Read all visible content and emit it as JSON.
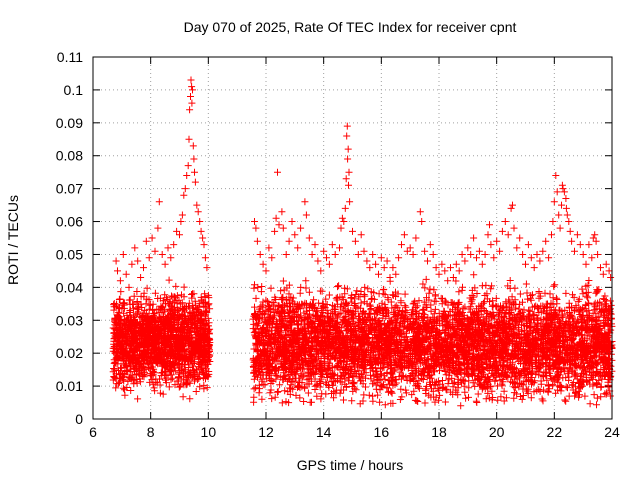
{
  "chart_data": {
    "type": "scatter",
    "title": "Day 070 of 2025, Rate Of TEC Index for receiver cpnt",
    "xlabel": "GPS time / hours",
    "ylabel": "ROTI / TECUs",
    "xlim": [
      6,
      24
    ],
    "ylim": [
      0,
      0.11
    ],
    "x_ticks": [
      "6",
      "8",
      "10",
      "12",
      "14",
      "16",
      "18",
      "20",
      "22",
      "24"
    ],
    "y_ticks": [
      "0",
      "0.01",
      "0.02",
      "0.03",
      "0.04",
      "0.05",
      "0.06",
      "0.07",
      "0.08",
      "0.09",
      "0.1",
      "0.11"
    ],
    "grid": true,
    "marker": "+",
    "color": "#ff0000",
    "series": [
      {
        "name": "ROTI",
        "points": [
          [
            6.8,
            0.048
          ],
          [
            6.85,
            0.045
          ],
          [
            6.95,
            0.042
          ],
          [
            7.05,
            0.05
          ],
          [
            7.15,
            0.044
          ],
          [
            7.25,
            0.04
          ],
          [
            7.35,
            0.047
          ],
          [
            7.45,
            0.052
          ],
          [
            7.55,
            0.048
          ],
          [
            7.65,
            0.043
          ],
          [
            7.75,
            0.046
          ],
          [
            7.85,
            0.054
          ],
          [
            7.95,
            0.049
          ],
          [
            8.05,
            0.055
          ],
          [
            8.15,
            0.051
          ],
          [
            8.25,
            0.058
          ],
          [
            8.3,
            0.066
          ],
          [
            8.4,
            0.05
          ],
          [
            8.5,
            0.047
          ],
          [
            8.6,
            0.052
          ],
          [
            8.7,
            0.049
          ],
          [
            8.8,
            0.053
          ],
          [
            8.9,
            0.057
          ],
          [
            9.0,
            0.056
          ],
          [
            9.05,
            0.06
          ],
          [
            9.1,
            0.062
          ],
          [
            9.15,
            0.068
          ],
          [
            9.2,
            0.07
          ],
          [
            9.25,
            0.074
          ],
          [
            9.3,
            0.077
          ],
          [
            9.33,
            0.085
          ],
          [
            9.35,
            0.094
          ],
          [
            9.38,
            0.098
          ],
          [
            9.4,
            0.103
          ],
          [
            9.42,
            0.101
          ],
          [
            9.45,
            0.1
          ],
          [
            9.43,
            0.096
          ],
          [
            9.48,
            0.083
          ],
          [
            9.5,
            0.079
          ],
          [
            9.52,
            0.075
          ],
          [
            9.55,
            0.072
          ],
          [
            9.6,
            0.065
          ],
          [
            9.65,
            0.063
          ],
          [
            9.7,
            0.06
          ],
          [
            9.75,
            0.057
          ],
          [
            9.8,
            0.055
          ],
          [
            9.85,
            0.053
          ],
          [
            9.9,
            0.049
          ],
          [
            9.95,
            0.046
          ],
          [
            11.6,
            0.06
          ],
          [
            11.65,
            0.058
          ],
          [
            11.7,
            0.054
          ],
          [
            11.8,
            0.05
          ],
          [
            11.9,
            0.047
          ],
          [
            12.0,
            0.045
          ],
          [
            12.1,
            0.052
          ],
          [
            12.2,
            0.049
          ],
          [
            12.3,
            0.057
          ],
          [
            12.35,
            0.061
          ],
          [
            12.4,
            0.075
          ],
          [
            12.45,
            0.059
          ],
          [
            12.55,
            0.063
          ],
          [
            12.6,
            0.058
          ],
          [
            12.7,
            0.05
          ],
          [
            12.8,
            0.054
          ],
          [
            12.9,
            0.06
          ],
          [
            13.0,
            0.056
          ],
          [
            13.1,
            0.052
          ],
          [
            13.2,
            0.058
          ],
          [
            13.35,
            0.066
          ],
          [
            13.4,
            0.062
          ],
          [
            13.5,
            0.055
          ],
          [
            13.6,
            0.05
          ],
          [
            13.7,
            0.053
          ],
          [
            13.8,
            0.048
          ],
          [
            13.9,
            0.045
          ],
          [
            14.0,
            0.051
          ],
          [
            14.1,
            0.049
          ],
          [
            14.2,
            0.047
          ],
          [
            14.3,
            0.053
          ],
          [
            14.4,
            0.05
          ],
          [
            14.55,
            0.052
          ],
          [
            14.6,
            0.058
          ],
          [
            14.65,
            0.061
          ],
          [
            14.7,
            0.06
          ],
          [
            14.75,
            0.064
          ],
          [
            14.78,
            0.073
          ],
          [
            14.8,
            0.086
          ],
          [
            14.82,
            0.089
          ],
          [
            14.85,
            0.082
          ],
          [
            14.83,
            0.079
          ],
          [
            14.88,
            0.075
          ],
          [
            14.86,
            0.071
          ],
          [
            14.9,
            0.066
          ],
          [
            15.0,
            0.057
          ],
          [
            15.1,
            0.054
          ],
          [
            15.2,
            0.05
          ],
          [
            15.3,
            0.056
          ],
          [
            15.4,
            0.051
          ],
          [
            15.5,
            0.048
          ],
          [
            15.6,
            0.046
          ],
          [
            15.7,
            0.05
          ],
          [
            15.8,
            0.047
          ],
          [
            15.9,
            0.044
          ],
          [
            16.0,
            0.049
          ],
          [
            16.1,
            0.046
          ],
          [
            16.2,
            0.048
          ],
          [
            16.3,
            0.043
          ],
          [
            16.4,
            0.046
          ],
          [
            16.5,
            0.044
          ],
          [
            16.6,
            0.049
          ],
          [
            16.7,
            0.053
          ],
          [
            16.8,
            0.056
          ],
          [
            16.9,
            0.051
          ],
          [
            17.0,
            0.052
          ],
          [
            17.1,
            0.05
          ],
          [
            17.2,
            0.055
          ],
          [
            17.35,
            0.063
          ],
          [
            17.4,
            0.06
          ],
          [
            17.5,
            0.051
          ],
          [
            17.6,
            0.048
          ],
          [
            17.7,
            0.053
          ],
          [
            17.8,
            0.05
          ],
          [
            17.9,
            0.046
          ],
          [
            18.0,
            0.044
          ],
          [
            18.1,
            0.047
          ],
          [
            18.2,
            0.045
          ],
          [
            18.3,
            0.042
          ],
          [
            18.4,
            0.046
          ],
          [
            18.5,
            0.043
          ],
          [
            18.6,
            0.047
          ],
          [
            18.7,
            0.045
          ],
          [
            18.8,
            0.05
          ],
          [
            18.9,
            0.048
          ],
          [
            19.0,
            0.052
          ],
          [
            19.1,
            0.05
          ],
          [
            19.2,
            0.055
          ],
          [
            19.3,
            0.049
          ],
          [
            19.4,
            0.051
          ],
          [
            19.5,
            0.047
          ],
          [
            19.6,
            0.05
          ],
          [
            19.7,
            0.056
          ],
          [
            19.75,
            0.059
          ],
          [
            19.8,
            0.053
          ],
          [
            19.9,
            0.049
          ],
          [
            20.0,
            0.054
          ],
          [
            20.1,
            0.051
          ],
          [
            20.2,
            0.057
          ],
          [
            20.3,
            0.06
          ],
          [
            20.4,
            0.056
          ],
          [
            20.5,
            0.064
          ],
          [
            20.55,
            0.065
          ],
          [
            20.6,
            0.058
          ],
          [
            20.7,
            0.052
          ],
          [
            20.8,
            0.055
          ],
          [
            20.9,
            0.05
          ],
          [
            21.0,
            0.047
          ],
          [
            21.1,
            0.053
          ],
          [
            21.2,
            0.049
          ],
          [
            21.3,
            0.046
          ],
          [
            21.4,
            0.05
          ],
          [
            21.5,
            0.048
          ],
          [
            21.6,
            0.051
          ],
          [
            21.7,
            0.054
          ],
          [
            21.8,
            0.049
          ],
          [
            21.9,
            0.056
          ],
          [
            21.95,
            0.06
          ],
          [
            22.0,
            0.066
          ],
          [
            22.05,
            0.074
          ],
          [
            22.1,
            0.069
          ],
          [
            22.15,
            0.062
          ],
          [
            22.2,
            0.058
          ],
          [
            22.25,
            0.065
          ],
          [
            22.28,
            0.071
          ],
          [
            22.3,
            0.07
          ],
          [
            22.35,
            0.069
          ],
          [
            22.4,
            0.067
          ],
          [
            22.42,
            0.064
          ],
          [
            22.45,
            0.062
          ],
          [
            22.5,
            0.06
          ],
          [
            22.55,
            0.057
          ],
          [
            22.6,
            0.054
          ],
          [
            22.7,
            0.051
          ],
          [
            22.8,
            0.056
          ],
          [
            22.9,
            0.053
          ],
          [
            23.0,
            0.05
          ],
          [
            23.1,
            0.047
          ],
          [
            23.2,
            0.053
          ],
          [
            23.3,
            0.049
          ],
          [
            23.35,
            0.055
          ],
          [
            23.4,
            0.056
          ],
          [
            23.45,
            0.054
          ],
          [
            23.5,
            0.05
          ],
          [
            23.6,
            0.046
          ],
          [
            23.7,
            0.044
          ],
          [
            23.8,
            0.047
          ],
          [
            23.9,
            0.045
          ],
          [
            23.95,
            0.043
          ]
        ]
      }
    ],
    "dense_bands": [
      {
        "x_range": [
          6.7,
          10.05
        ],
        "y_range": [
          0.006,
          0.045
        ],
        "y_center": 0.022,
        "count": 1700,
        "seed": 11
      },
      {
        "x_range": [
          11.55,
          24.0
        ],
        "y_range": [
          0.004,
          0.047
        ],
        "y_center": 0.021,
        "count": 5200,
        "seed": 29
      }
    ]
  }
}
